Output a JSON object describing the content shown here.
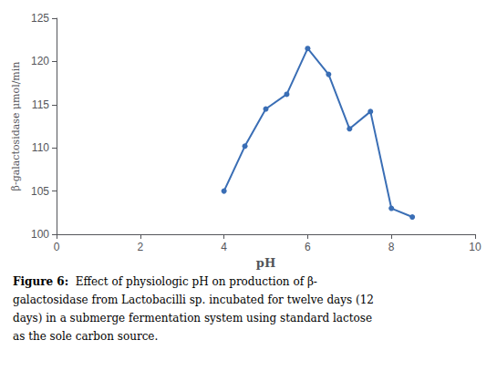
{
  "chart_data": {
    "type": "line",
    "x": [
      4,
      4.5,
      5,
      5.5,
      6,
      6.5,
      7,
      7.5,
      8,
      8.5
    ],
    "values": [
      105,
      110.2,
      114.5,
      116.2,
      121.5,
      118.5,
      112.2,
      114.2,
      103.0,
      102.0
    ],
    "xlabel": "pH",
    "ylabel": "β-galactosidase μmol/min",
    "xlim": [
      0,
      10
    ],
    "ylim": [
      100,
      125
    ],
    "xticks": [
      0,
      2,
      4,
      6,
      8,
      10
    ],
    "yticks": [
      100,
      105,
      110,
      115,
      120,
      125
    ],
    "color": "#3A6EB5",
    "marker": "circle",
    "grid": false,
    "annotations": [
      "Figure 6:  Effect of physiologic pH on production of β-",
      "galactosidase from Lactobacilli sp. incubated for twelve days (12",
      "days) in a submerge fermentation system using standard lactose",
      "as the sole carbon source."
    ]
  }
}
